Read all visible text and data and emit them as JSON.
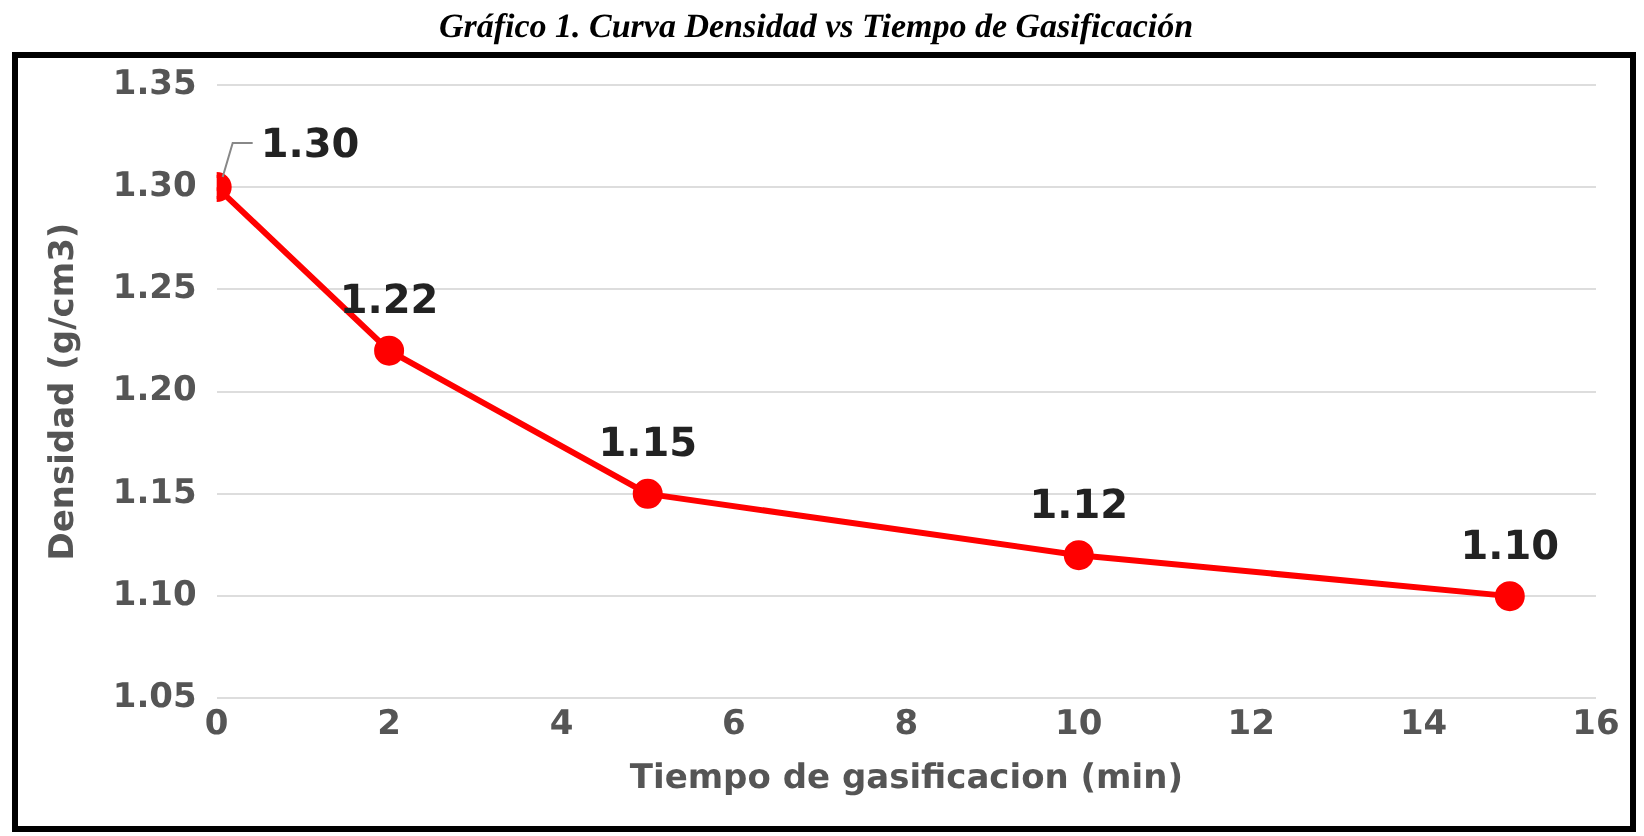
{
  "chart_data": {
    "type": "line",
    "title": "Gráfico 1. Curva Densidad vs Tiempo de Gasificación",
    "xlabel": "Tiempo de gasificacion (min)",
    "ylabel": "Densidad (g/cm3)",
    "x": [
      0,
      2,
      5,
      10,
      15
    ],
    "series": [
      {
        "color": "#ff0000",
        "values": [
          1.3,
          1.22,
          1.15,
          1.12,
          1.1
        ],
        "value_labels": [
          "1.30",
          "1.22",
          "1.15",
          "1.12",
          "1.10"
        ]
      }
    ],
    "xlim": [
      0,
      16
    ],
    "xticks": [
      0,
      2,
      4,
      6,
      8,
      10,
      12,
      14,
      16
    ],
    "ylim": [
      1.05,
      1.35
    ],
    "yticks": [
      {
        "value": 1.05,
        "label": "1.05"
      },
      {
        "value": 1.1,
        "label": "1.10"
      },
      {
        "value": 1.15,
        "label": "1.15"
      },
      {
        "value": 1.2,
        "label": "1.20"
      },
      {
        "value": 1.25,
        "label": "1.25"
      },
      {
        "value": 1.3,
        "label": "1.30"
      },
      {
        "value": 1.35,
        "label": "1.35"
      }
    ],
    "grid": "y",
    "marker": "circle",
    "line_style": "solid",
    "legend": false
  }
}
